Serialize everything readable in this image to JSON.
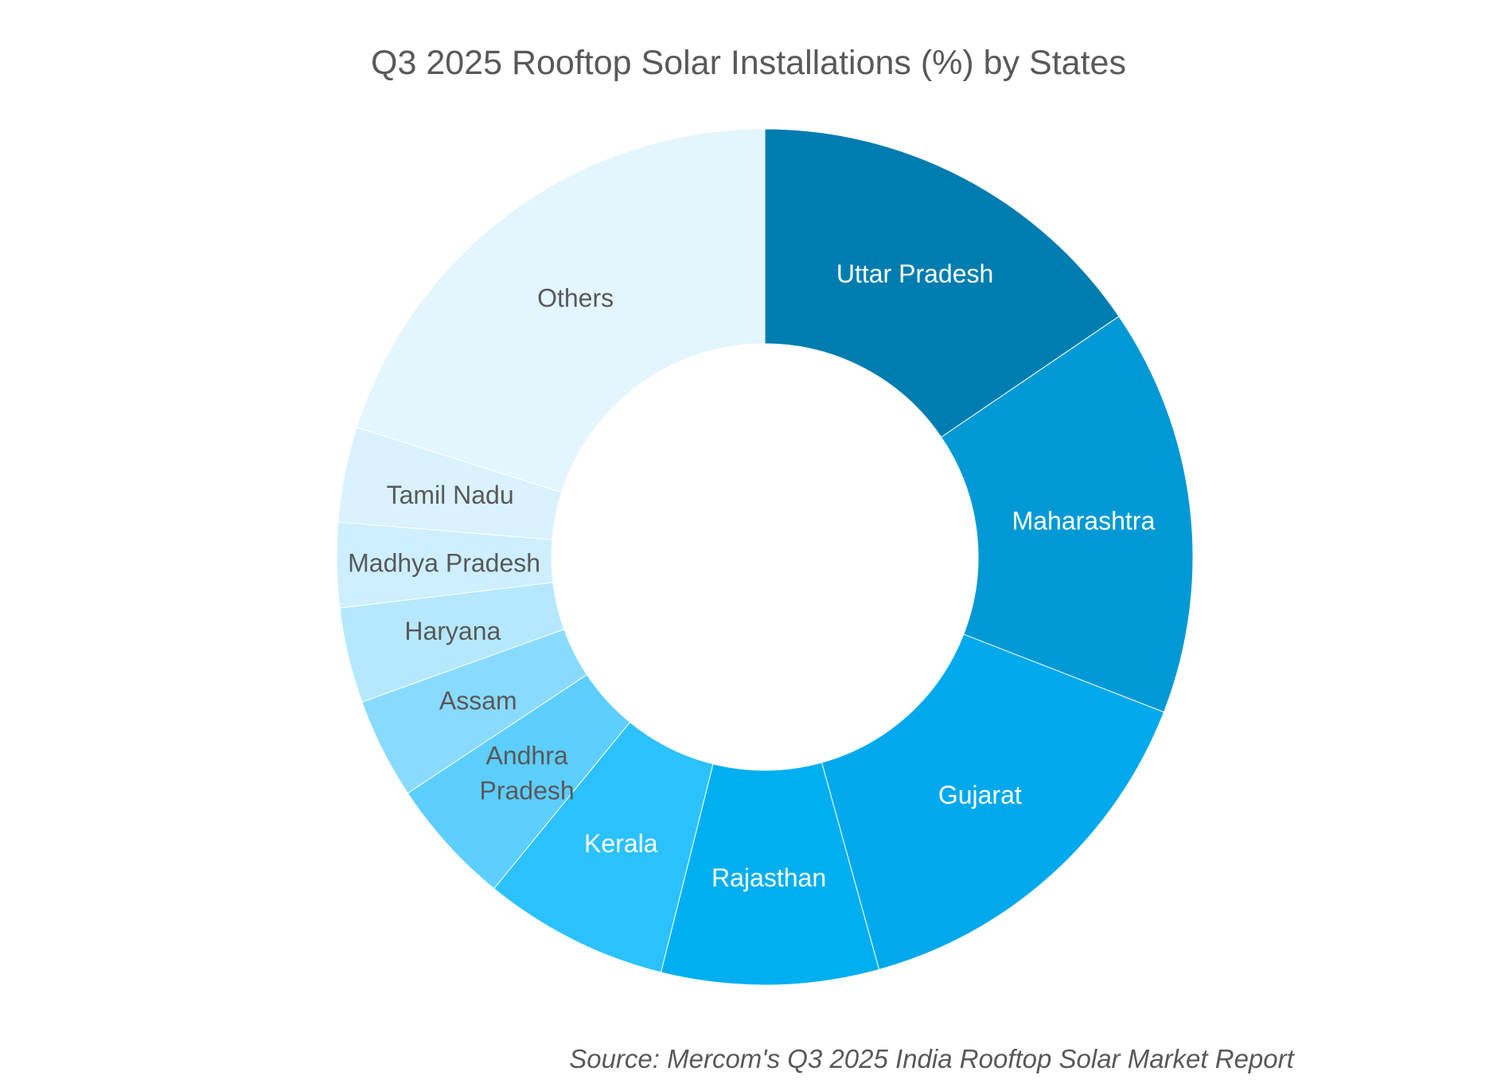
{
  "chart_data": {
    "type": "pie",
    "variant": "donut",
    "title": "Q3 2025 Rooftop Solar Installations (%) by States",
    "source": "Source: Mercom's Q3 2025 India Rooftop Solar Market Report",
    "start": "top, clockwise",
    "slices": [
      {
        "label": "Uttar Pradesh",
        "value": 15.5,
        "color": "#007DB0",
        "text_color": "#ffffff"
      },
      {
        "label": "Maharashtra",
        "value": 15.4,
        "color": "#0099D6",
        "text_color": "#ffffff"
      },
      {
        "label": "Gujarat",
        "value": 14.8,
        "color": "#00A9EC",
        "text_color": "#ffffff"
      },
      {
        "label": "Rajasthan",
        "value": 8.2,
        "color": "#00AFF0",
        "text_color": "#ffffff"
      },
      {
        "label": "Kerala",
        "value": 7.0,
        "color": "#2BC1FC",
        "text_color": "#ffffff"
      },
      {
        "label": "Andhra Pradesh",
        "value": 4.8,
        "color": "#5CCEFF",
        "text_color": "#595959"
      },
      {
        "label": "Assam",
        "value": 3.8,
        "color": "#88DBFF",
        "text_color": "#595959"
      },
      {
        "label": "Haryana",
        "value": 3.6,
        "color": "#B5E8FF",
        "text_color": "#595959"
      },
      {
        "label": "Madhya Pradesh",
        "value": 3.2,
        "color": "#CDEFFF",
        "text_color": "#595959"
      },
      {
        "label": "Tamil Nadu",
        "value": 3.6,
        "color": "#D9F2FD",
        "text_color": "#595959"
      },
      {
        "label": "Others",
        "value": 20.1,
        "color": "#E3F5FD",
        "text_color": "#595959"
      }
    ]
  }
}
